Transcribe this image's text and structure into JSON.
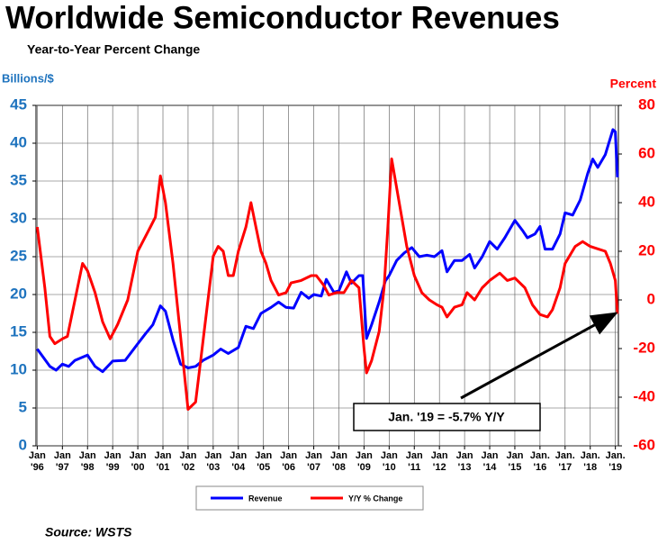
{
  "chart_data": {
    "type": "line",
    "title": "Worldwide Semiconductor Revenues",
    "subtitle": "Year-to-Year Percent Change",
    "y_label": "Billions/$",
    "y2_label": "Percent",
    "source": "Source: WSTS",
    "annotation": "Jan. '19 = -5.7% Y/Y",
    "xlim": [
      1995.95,
      2019.12
    ],
    "xticks": [
      {
        "value": 1996,
        "label": "Jan\n'96"
      },
      {
        "value": 1997,
        "label": "Jan\n'97"
      },
      {
        "value": 1998,
        "label": "Jan\n'98"
      },
      {
        "value": 1999,
        "label": "Jan\n'99"
      },
      {
        "value": 2000,
        "label": "Jan\n'00"
      },
      {
        "value": 2001,
        "label": "Jan\n'01"
      },
      {
        "value": 2002,
        "label": "Jan\n'02"
      },
      {
        "value": 2003,
        "label": "Jan\n'03"
      },
      {
        "value": 2004,
        "label": "Jan\n'04"
      },
      {
        "value": 2005,
        "label": "Jan\n'05"
      },
      {
        "value": 2006,
        "label": "Jan\n'06"
      },
      {
        "value": 2007,
        "label": "Jan\n'07"
      },
      {
        "value": 2008,
        "label": "Jan\n'08"
      },
      {
        "value": 2009,
        "label": "Jan\n'09"
      },
      {
        "value": 2010,
        "label": "Jan\n'10"
      },
      {
        "value": 2011,
        "label": "Jan\n'11"
      },
      {
        "value": 2012,
        "label": "Jan\n'12"
      },
      {
        "value": 2013,
        "label": "Jan\n'13"
      },
      {
        "value": 2014,
        "label": "Jan\n'14"
      },
      {
        "value": 2015,
        "label": "Jan\n'15"
      },
      {
        "value": 2016,
        "label": "Jan.\n'16"
      },
      {
        "value": 2017,
        "label": "Jan.\n'17"
      },
      {
        "value": 2018,
        "label": "Jan.\n'18"
      },
      {
        "value": 2019,
        "label": "Jan.\n'19"
      }
    ],
    "ylim": [
      0,
      45
    ],
    "yticks": [
      0,
      5,
      10,
      15,
      20,
      25,
      30,
      35,
      40,
      45
    ],
    "y2lim": [
      -60,
      80
    ],
    "y2ticks": [
      -60,
      -40,
      -20,
      0,
      20,
      40,
      60,
      80
    ],
    "grid": true,
    "series": [
      {
        "name": "Revenue",
        "color": "#0000ff",
        "x": [
          1996.0,
          1996.5,
          1996.75,
          1997.0,
          1997.25,
          1997.5,
          1998.0,
          1998.3,
          1998.6,
          1999.0,
          1999.5,
          2000.0,
          2000.3,
          2000.6,
          2000.9,
          2001.1,
          2001.4,
          2001.7,
          2002.0,
          2002.3,
          2002.6,
          2003.0,
          2003.3,
          2003.6,
          2004.0,
          2004.3,
          2004.6,
          2004.9,
          2005.3,
          2005.6,
          2005.9,
          2006.2,
          2006.5,
          2006.8,
          2007.0,
          2007.3,
          2007.5,
          2007.8,
          2008.0,
          2008.3,
          2008.5,
          2008.8,
          2008.95,
          2009.1,
          2009.3,
          2009.6,
          2009.85,
          2010.0,
          2010.3,
          2010.6,
          2010.9,
          2011.2,
          2011.5,
          2011.8,
          2012.1,
          2012.3,
          2012.6,
          2012.9,
          2013.2,
          2013.4,
          2013.7,
          2014.0,
          2014.3,
          2014.6,
          2015.0,
          2015.3,
          2015.5,
          2015.8,
          2016.0,
          2016.2,
          2016.5,
          2016.8,
          2017.0,
          2017.3,
          2017.6,
          2017.9,
          2018.1,
          2018.3,
          2018.6,
          2018.9,
          2019.0,
          2019.08
        ],
        "values": [
          12.8,
          10.5,
          10.0,
          10.8,
          10.5,
          11.3,
          12.0,
          10.5,
          9.8,
          11.2,
          11.3,
          13.5,
          14.8,
          16,
          18.5,
          17.8,
          14,
          10.8,
          10.3,
          10.5,
          11.3,
          12,
          12.8,
          12.2,
          13,
          15.8,
          15.5,
          17.5,
          18.3,
          19,
          18.3,
          18.2,
          20.3,
          19.5,
          20,
          19.8,
          22,
          20.3,
          20.5,
          23,
          21.5,
          22.5,
          22.5,
          14.2,
          16,
          19,
          21.8,
          22.5,
          24.5,
          25.5,
          26.2,
          25,
          25.2,
          25,
          25.8,
          23,
          24.5,
          24.5,
          25.3,
          23.5,
          25,
          27,
          26,
          27.5,
          29.8,
          28.5,
          27.5,
          28,
          29,
          26,
          26,
          28,
          30.8,
          30.5,
          32.5,
          36,
          37.9,
          36.8,
          38.5,
          41.8,
          41.5,
          35.5
        ]
      },
      {
        "name": "Y/Y % Change",
        "color": "#ff0000",
        "axis": "y2",
        "x": [
          1996.0,
          1996.3,
          1996.5,
          1996.7,
          1997.0,
          1997.2,
          1997.5,
          1997.8,
          1998.0,
          1998.3,
          1998.6,
          1998.9,
          1999.2,
          1999.6,
          2000.0,
          2000.2,
          2000.5,
          2000.7,
          2000.9,
          2001.1,
          2001.4,
          2001.7,
          2001.9,
          2002.0,
          2002.3,
          2002.5,
          2003.0,
          2003.2,
          2003.4,
          2003.6,
          2003.8,
          2004.0,
          2004.3,
          2004.5,
          2004.7,
          2004.9,
          2005.1,
          2005.3,
          2005.6,
          2005.9,
          2006.1,
          2006.5,
          2006.9,
          2007.1,
          2007.4,
          2007.6,
          2007.9,
          2008.2,
          2008.5,
          2008.8,
          2009.0,
          2009.1,
          2009.3,
          2009.6,
          2009.8,
          2009.95,
          2010.1,
          2010.4,
          2010.7,
          2011.0,
          2011.3,
          2011.6,
          2011.9,
          2012.1,
          2012.3,
          2012.6,
          2012.9,
          2013.1,
          2013.4,
          2013.7,
          2014.0,
          2014.4,
          2014.7,
          2015.0,
          2015.4,
          2015.7,
          2016.0,
          2016.3,
          2016.5,
          2016.8,
          2017.0,
          2017.4,
          2017.7,
          2018.0,
          2018.3,
          2018.6,
          2018.8,
          2019.0,
          2019.08
        ],
        "values": [
          30,
          5,
          -15,
          -18,
          -16,
          -15,
          0,
          15,
          12,
          3,
          -9,
          -16,
          -10,
          0,
          20,
          24,
          30,
          34,
          51,
          40,
          15,
          -15,
          -35,
          -45,
          -42,
          -25,
          18,
          22,
          20,
          10,
          10,
          20,
          30,
          40,
          30,
          20,
          15,
          8,
          2,
          3,
          7,
          8,
          10,
          10,
          6,
          2,
          3,
          3,
          8,
          5,
          -20,
          -30,
          -25,
          -13,
          5,
          30,
          58,
          40,
          22,
          10,
          3,
          0,
          -2,
          -3,
          -7,
          -3,
          -2,
          3,
          0,
          5,
          8,
          11,
          8,
          9,
          5,
          -2,
          -6,
          -7,
          -4,
          5,
          15,
          22,
          24,
          22,
          21,
          20,
          15,
          8,
          -5.7
        ]
      }
    ]
  }
}
